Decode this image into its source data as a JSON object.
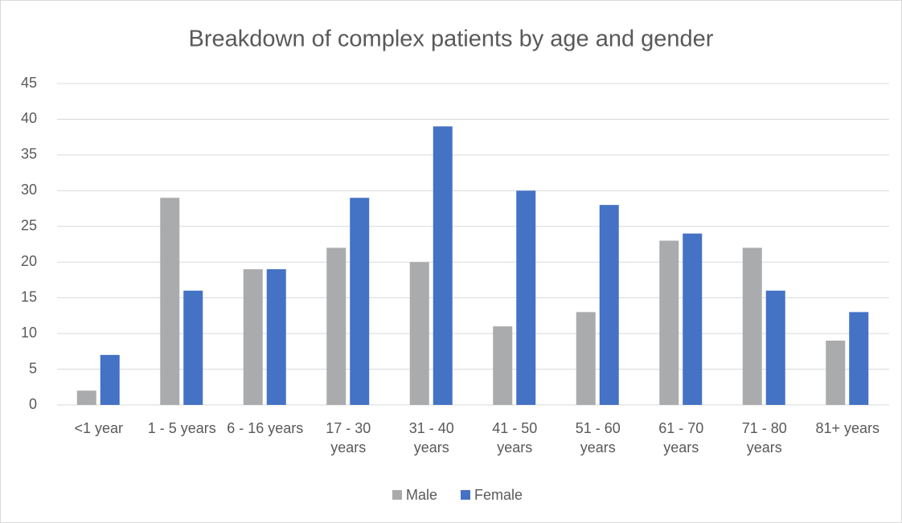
{
  "chart_data": {
    "type": "bar",
    "title": "Breakdown of complex patients by age and gender",
    "categories": [
      "<1 year",
      "1 - 5 years",
      "6 - 16 years",
      "17 - 30 years",
      "31 - 40 years",
      "41 - 50 years",
      "51 - 60 years",
      "61 - 70 years",
      "71 - 80 years",
      "81+ years"
    ],
    "series": [
      {
        "name": "Male",
        "color": "#a9abad",
        "values": [
          2,
          29,
          19,
          22,
          20,
          11,
          13,
          23,
          22,
          9
        ]
      },
      {
        "name": "Female",
        "color": "#4472c4",
        "values": [
          7,
          16,
          19,
          29,
          39,
          30,
          28,
          24,
          16,
          13
        ]
      }
    ],
    "ylim": [
      0,
      45
    ],
    "yticks": [
      0,
      5,
      10,
      15,
      20,
      25,
      30,
      35,
      40,
      45
    ],
    "grid": true,
    "legend": "bottom"
  }
}
